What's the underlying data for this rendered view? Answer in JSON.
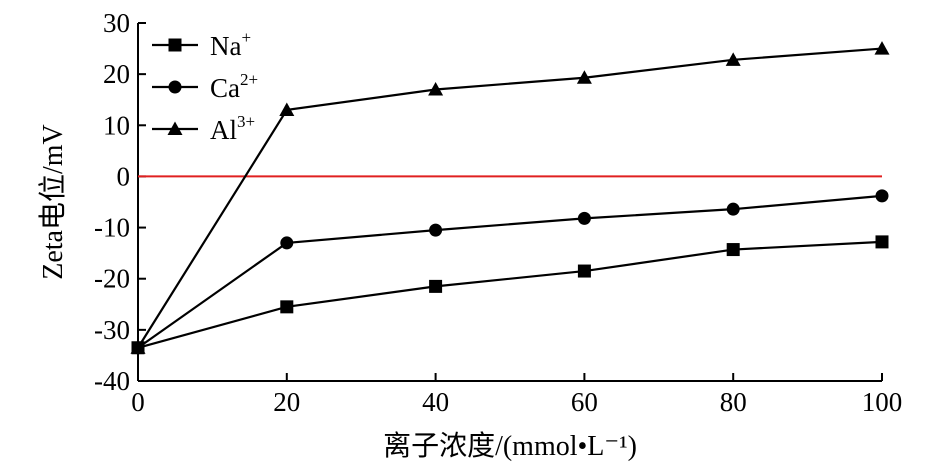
{
  "chart_data": {
    "type": "line",
    "x": [
      0,
      20,
      40,
      60,
      80,
      100
    ],
    "series": [
      {
        "name": "Na",
        "name_sup": "+",
        "marker": "square",
        "values": [
          -33.5,
          -25.5,
          -21.5,
          -18.5,
          -14.3,
          -12.8
        ]
      },
      {
        "name": "Ca",
        "name_sup": "2+",
        "marker": "circle",
        "values": [
          -33.5,
          -13.0,
          -10.5,
          -8.2,
          -6.4,
          -3.8
        ]
      },
      {
        "name": "Al",
        "name_sup": "3+",
        "marker": "triangle",
        "values": [
          -33.5,
          13.0,
          17.0,
          19.3,
          22.8,
          25.0
        ]
      }
    ],
    "reference_line": {
      "y": 0,
      "color": "#e02020"
    },
    "xlim": [
      0,
      100
    ],
    "ylim": [
      -40,
      30
    ],
    "xticks": [
      0,
      20,
      40,
      60,
      80,
      100
    ],
    "yticks": [
      30,
      20,
      10,
      0,
      -10,
      -20,
      -30,
      -40
    ],
    "ytick_labels": [
      "30",
      "20",
      "10",
      "0",
      "-10",
      "-20",
      "-30",
      "-40"
    ],
    "xlabel": "离子浓度/(mmol•L⁻¹)",
    "ylabel": "Zeta电位/mV",
    "grid": false,
    "legend_position": "top-left",
    "line_color": "#000000"
  }
}
